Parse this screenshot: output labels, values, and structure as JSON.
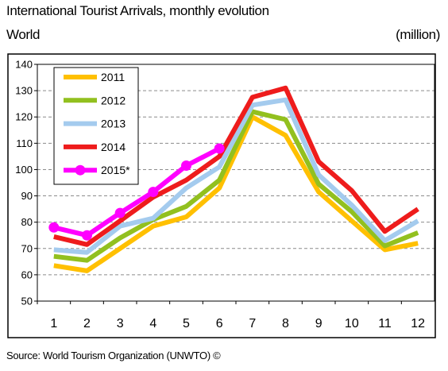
{
  "header": {
    "title": "International Tourist Arrivals, monthly evolution",
    "subtitle": "World",
    "unit": "(million)"
  },
  "footer": {
    "source": "Source: World Tourism Organization (UNWTO) ©"
  },
  "chart_data": {
    "type": "line",
    "x": [
      1,
      2,
      3,
      4,
      5,
      6,
      7,
      8,
      9,
      10,
      11,
      12
    ],
    "ylim": [
      50,
      140
    ],
    "yticks": [
      50,
      60,
      70,
      80,
      90,
      100,
      110,
      120,
      130,
      140
    ],
    "grid": true,
    "legend_position": "top-left",
    "series": [
      {
        "name": "2011",
        "color": "#FFC000",
        "marker": false,
        "values": [
          63.5,
          61.5,
          70,
          78.5,
          82,
          93,
          120,
          113,
          91.5,
          80.5,
          69.5,
          72
        ]
      },
      {
        "name": "2012",
        "color": "#92C01F",
        "marker": false,
        "values": [
          67,
          65.5,
          74,
          81,
          86,
          96,
          122,
          119,
          94.5,
          84,
          71,
          76
        ]
      },
      {
        "name": "2013",
        "color": "#A4CBEE",
        "marker": false,
        "values": [
          69.5,
          68.5,
          78.5,
          81.5,
          93,
          101,
          124.5,
          126.5,
          98,
          86.5,
          73,
          80.5
        ]
      },
      {
        "name": "2014",
        "color": "#EE1C1C",
        "marker": false,
        "values": [
          74.5,
          71.5,
          80.5,
          89.5,
          96,
          105,
          127.5,
          131,
          103,
          92,
          76.5,
          85
        ]
      },
      {
        "name": "2015*",
        "color": "#FF00FF",
        "marker": true,
        "values": [
          78,
          75,
          83.5,
          91.5,
          101.5,
          108,
          null,
          null,
          null,
          null,
          null,
          null
        ]
      }
    ]
  }
}
